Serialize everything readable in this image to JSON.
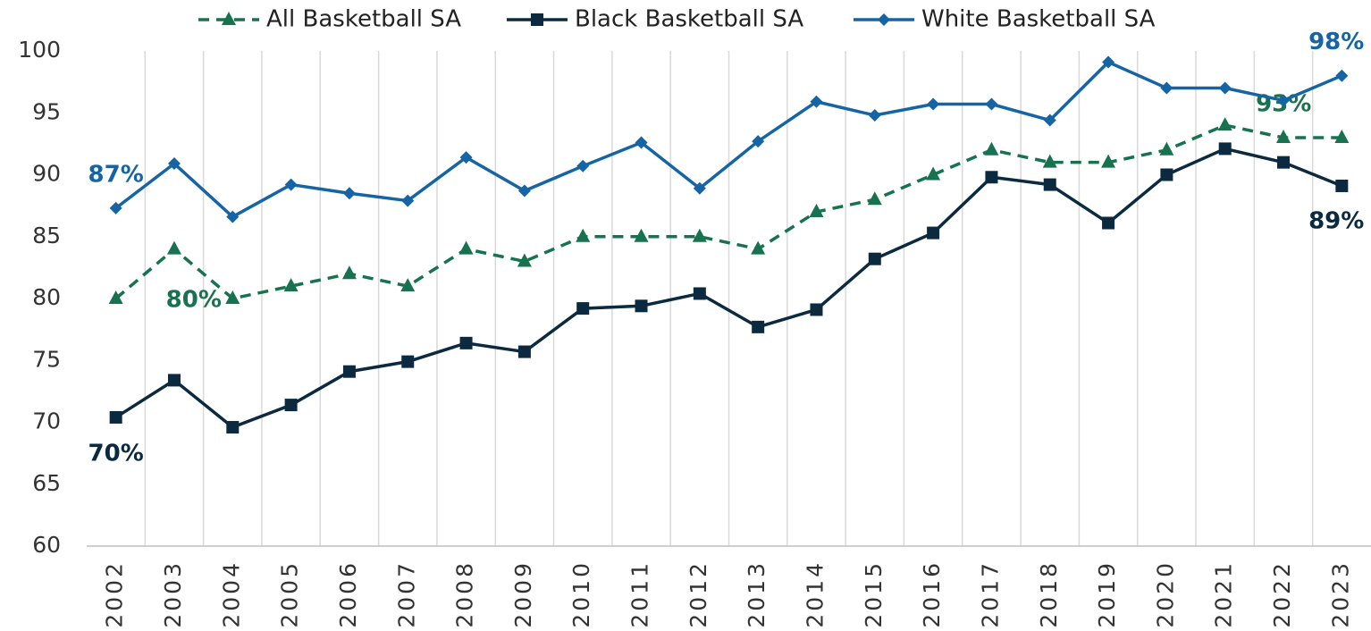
{
  "chart_data": {
    "type": "line",
    "categories": [
      "2002",
      "2003",
      "2004",
      "2005",
      "2006",
      "2007",
      "2008",
      "2009",
      "2010",
      "2011",
      "2012",
      "2013",
      "2014",
      "2015",
      "2016",
      "2017",
      "2018",
      "2019",
      "2020",
      "2021",
      "2022",
      "2023"
    ],
    "series": [
      {
        "name": "All Basketball SA",
        "color": "#17724f",
        "dash": true,
        "marker": "triangle",
        "values": [
          80,
          84,
          80,
          81,
          82,
          81,
          84,
          83,
          85,
          85,
          85,
          84,
          87,
          88,
          90,
          92,
          91,
          91,
          92,
          94,
          93,
          93
        ],
        "value_labels": [
          "80%",
          null,
          null,
          null,
          null,
          null,
          null,
          null,
          null,
          null,
          null,
          null,
          null,
          null,
          null,
          null,
          null,
          null,
          null,
          null,
          null,
          "93%"
        ]
      },
      {
        "name": "Black Basketball SA",
        "color": "#0b2a3f",
        "dash": false,
        "marker": "square",
        "values": [
          70.4,
          73.4,
          69.6,
          71.4,
          74.1,
          74.9,
          76.4,
          75.7,
          79.2,
          79.4,
          80.4,
          77.7,
          79.1,
          83.2,
          85.3,
          89.8,
          89.2,
          86.1,
          90,
          92.1,
          91,
          89.1
        ],
        "value_labels": [
          "70%",
          null,
          null,
          null,
          null,
          null,
          null,
          null,
          null,
          null,
          null,
          null,
          null,
          null,
          null,
          null,
          null,
          null,
          null,
          null,
          null,
          "89%"
        ]
      },
      {
        "name": "White Basketball SA",
        "color": "#1564a5",
        "dash": false,
        "marker": "diamond",
        "values": [
          87.3,
          90.9,
          86.6,
          89.2,
          88.5,
          87.9,
          91.4,
          88.7,
          90.7,
          92.6,
          88.9,
          92.7,
          95.9,
          94.8,
          95.7,
          95.7,
          94.4,
          99.1,
          97,
          97,
          96,
          98
        ],
        "value_labels": [
          "87%",
          null,
          null,
          null,
          null,
          null,
          null,
          null,
          null,
          null,
          null,
          null,
          null,
          null,
          null,
          null,
          null,
          null,
          null,
          null,
          null,
          "98%"
        ]
      }
    ],
    "ylim": [
      60,
      100
    ],
    "yticks": [
      60,
      65,
      70,
      75,
      80,
      85,
      90,
      95,
      100
    ],
    "grid": true,
    "legend": "top"
  }
}
